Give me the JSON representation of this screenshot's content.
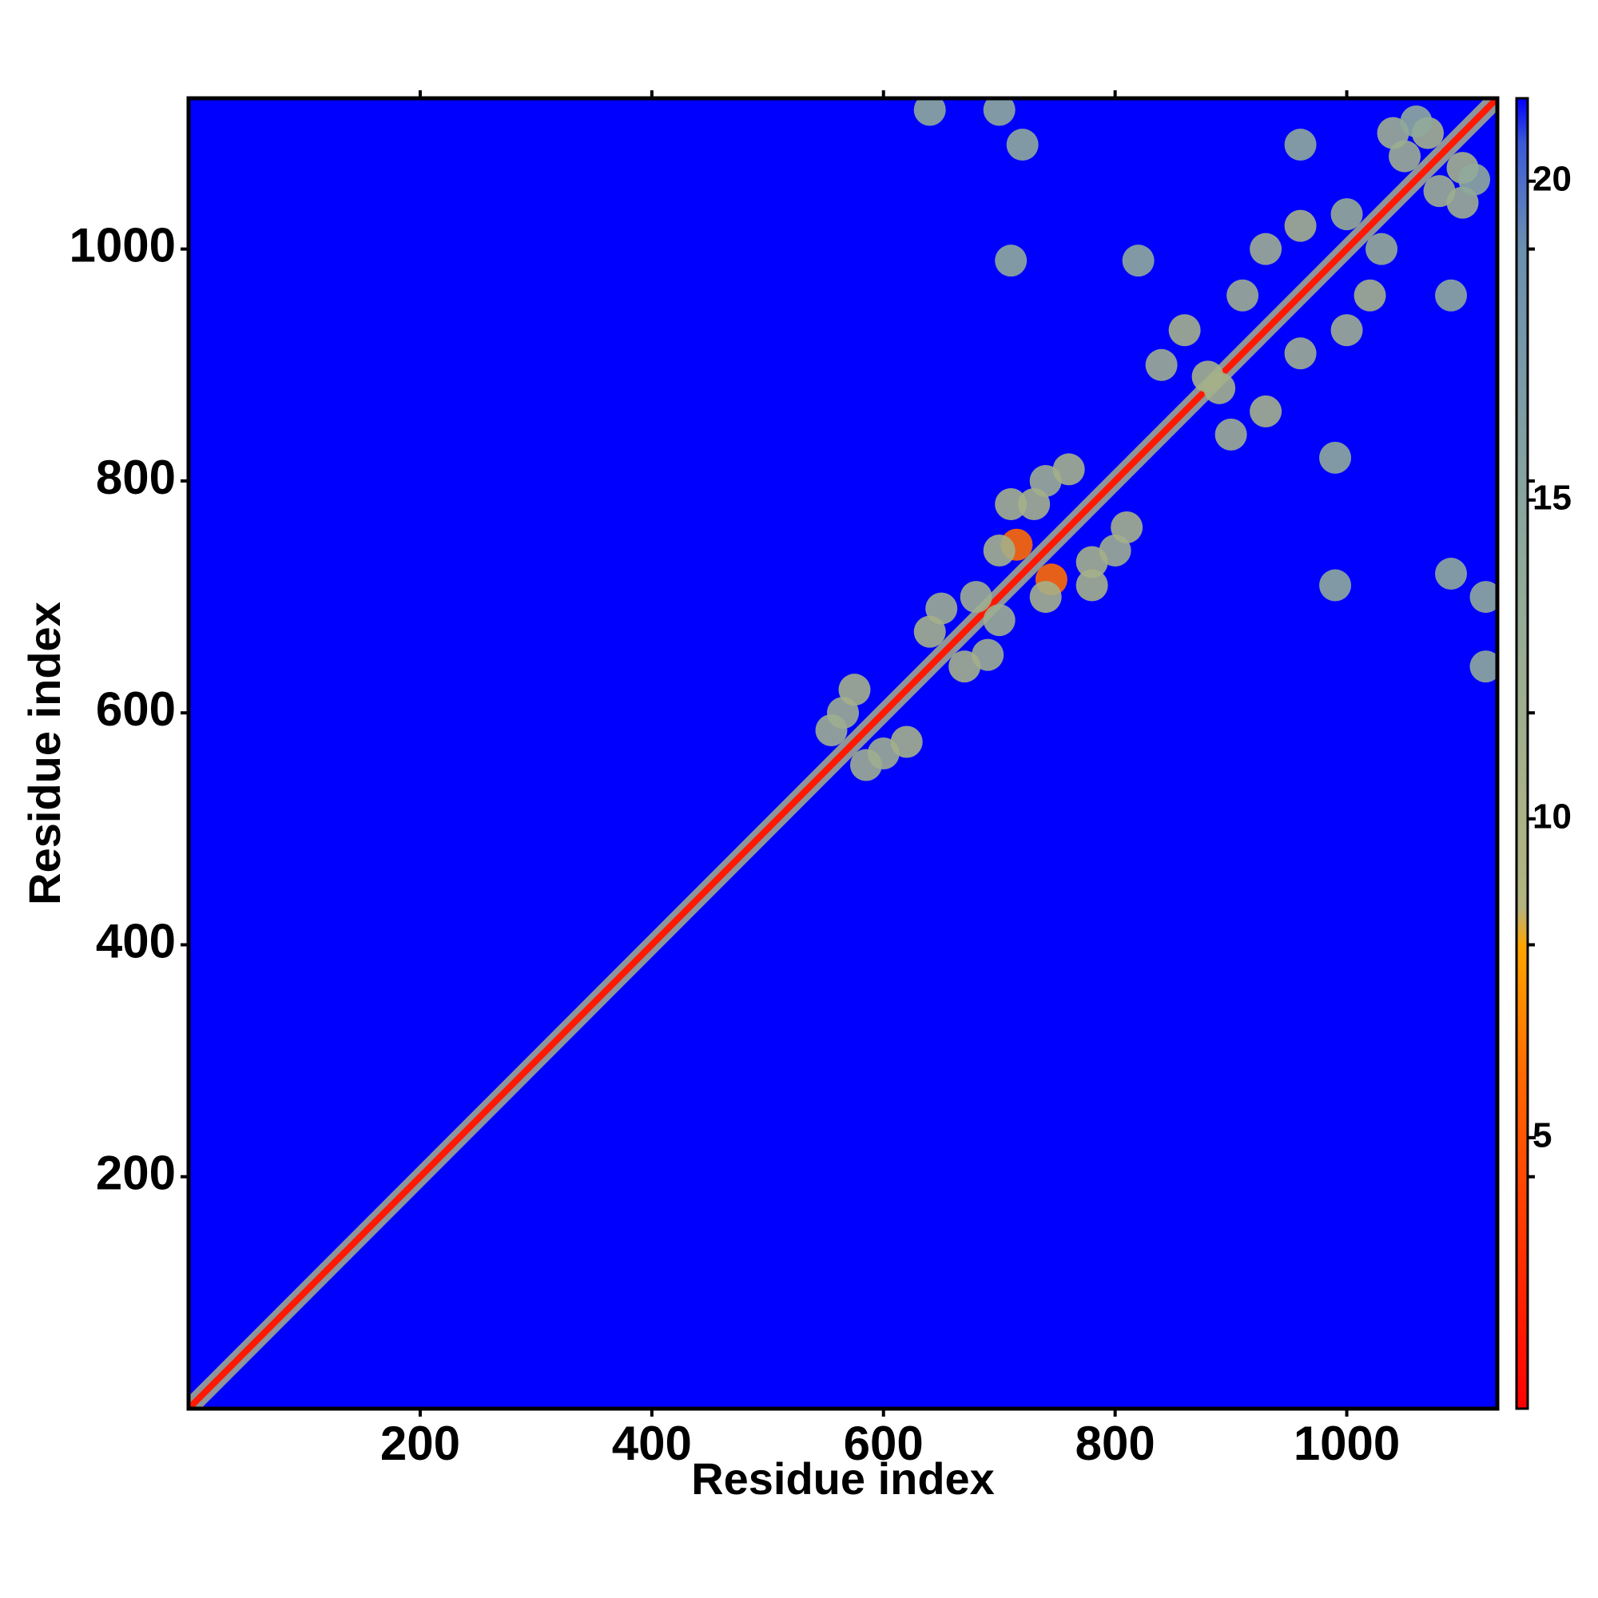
{
  "chart_data": {
    "type": "heatmap",
    "xlabel": "Residue index",
    "ylabel": "Residue index",
    "xlim": [
      0,
      1130
    ],
    "ylim": [
      0,
      1130
    ],
    "xticks": [
      200,
      400,
      600,
      800,
      1000
    ],
    "yticks": [
      200,
      400,
      600,
      800,
      1000
    ],
    "clim": [
      0.75,
      21.3
    ],
    "cticks": [
      5,
      10,
      15,
      20
    ],
    "colorscale": [
      [
        0.75,
        "#ff0000"
      ],
      [
        6,
        "#ff6a00"
      ],
      [
        8,
        "#ffa500"
      ],
      [
        8.6,
        "#b4b47e"
      ],
      [
        14,
        "#8faa9a"
      ],
      [
        19,
        "#6a8fb0"
      ],
      [
        20.6,
        "#3a5ad8"
      ],
      [
        21.3,
        "#0000ff"
      ]
    ],
    "background": 21.3,
    "symmetric": true,
    "diagonal": {
      "x": [
        0,
        1130
      ],
      "y": [
        0,
        1130
      ],
      "value": 2,
      "band_value": 11
    },
    "contacts": {
      "x": [
        565,
        575,
        585,
        650,
        640,
        680,
        715,
        710,
        740,
        760,
        700,
        780,
        840,
        860,
        880,
        910,
        930,
        960,
        1050,
        1040,
        1070,
        640,
        700,
        720,
        960,
        1000,
        820,
        990,
        1110
      ],
      "y": [
        600,
        620,
        555,
        690,
        670,
        700,
        745,
        780,
        800,
        810,
        740,
        730,
        900,
        930,
        890,
        960,
        1000,
        1020,
        1080,
        1100,
        1100,
        1120,
        1120,
        1090,
        1090,
        1030,
        990,
        710,
        1060
      ],
      "values": [
        12,
        11,
        12,
        12,
        11,
        12,
        6,
        11,
        12,
        11,
        11,
        11,
        12,
        11,
        11,
        12,
        12,
        11,
        12,
        12,
        11,
        14,
        14,
        14,
        14,
        13,
        14,
        14,
        14
      ]
    }
  }
}
